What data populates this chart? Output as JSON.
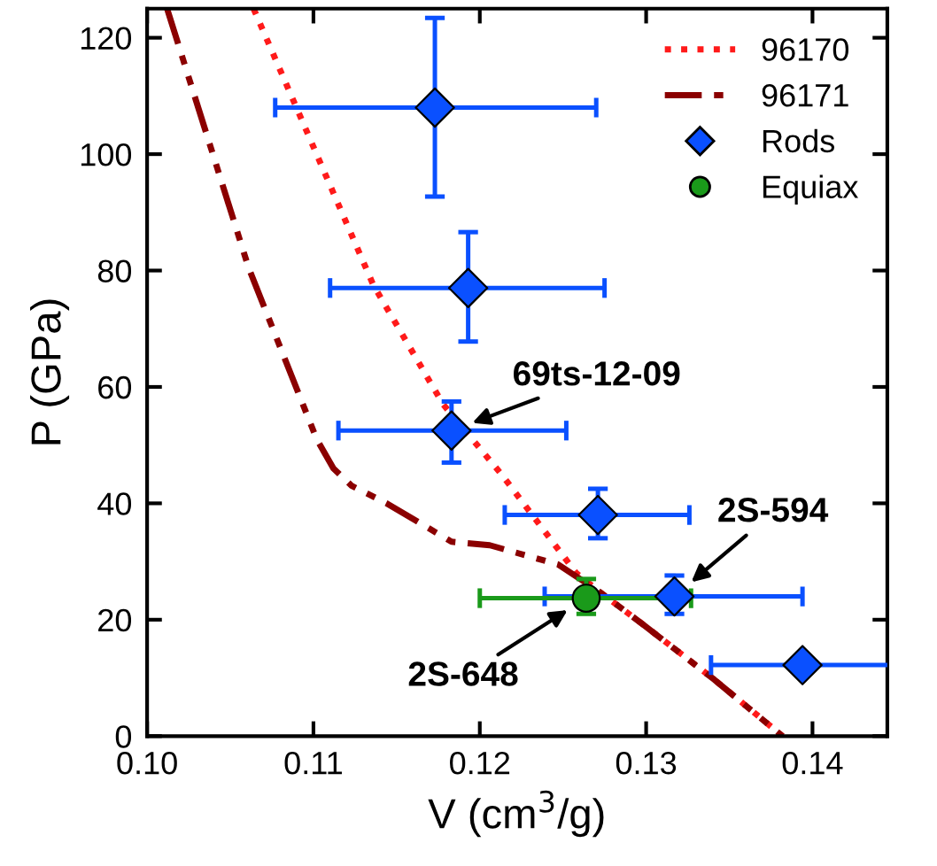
{
  "chart_data": {
    "type": "scatter",
    "xlabel": "V (cm$^{3}$/g)",
    "ylabel": "P (GPa)",
    "xlim": [
      0.1,
      0.1445
    ],
    "ylim": [
      0,
      125
    ],
    "xticks": [
      {
        "value": 0.1,
        "label": "0.10"
      },
      0.11,
      0.12,
      0.13,
      0.14
    ],
    "yticks": [
      0,
      20,
      40,
      60,
      80,
      100,
      120
    ],
    "grid": false,
    "legend": "top right",
    "series": [
      {
        "name": "96170",
        "type": "line",
        "color": "#ff1a1a",
        "line_style": "dotted",
        "marker": "none",
        "x": [
          0.1064,
          0.1136,
          0.1178,
          0.1213,
          0.1258,
          0.1271,
          0.1299,
          0.1341,
          0.1382
        ],
        "values": [
          125,
          77.5,
          57,
          45,
          28,
          25,
          19,
          9.7,
          0
        ]
      },
      {
        "name": "96171",
        "type": "line",
        "color": "#8b0000",
        "line_style": "dashdot",
        "marker": "none",
        "x": [
          0.1012,
          0.1061,
          0.1102,
          0.1112,
          0.1123,
          0.1144,
          0.1183,
          0.1206,
          0.1247,
          0.1271,
          0.1299,
          0.1341,
          0.1382
        ],
        "values": [
          125,
          80.5,
          51,
          46,
          43,
          40,
          33.4,
          32.8,
          29.5,
          25,
          19,
          9.7,
          0
        ]
      },
      {
        "name": "Rods",
        "color": "#0a50ff",
        "marker": "diamond",
        "x": [
          0.1173,
          0.1193,
          0.1183,
          0.1271,
          0.1317,
          0.1394
        ],
        "values": [
          108,
          77,
          52.5,
          38,
          24,
          12.2
        ],
        "xerrors": [
          [
            0.1077,
            0.127
          ],
          [
            0.111,
            0.1275
          ],
          [
            0.1115,
            0.1252
          ],
          [
            0.1215,
            0.1326
          ],
          [
            0.1239,
            0.1394
          ],
          [
            0.1339,
            0.1449
          ]
        ],
        "errors": [
          [
            92.7,
            123.4
          ],
          [
            67.8,
            86.6
          ],
          [
            47,
            57.5
          ],
          [
            34,
            42.5
          ],
          [
            21,
            27.6
          ],
          null
        ]
      },
      {
        "name": "Equiax",
        "color": "#1a9a1a",
        "marker": "circle",
        "x": [
          0.1264
        ],
        "values": [
          23.7
        ],
        "xerrors": [
          [
            0.12,
            0.1327
          ]
        ],
        "errors": [
          [
            21,
            27
          ]
        ]
      }
    ],
    "annotations": [
      {
        "text": "69ts-12-09",
        "x": 0.1183,
        "y": 52.5
      },
      {
        "text": "2S-594",
        "x": 0.1317,
        "y": 24
      },
      {
        "text": "2S-648",
        "x": 0.1264,
        "y": 23.7
      }
    ]
  }
}
